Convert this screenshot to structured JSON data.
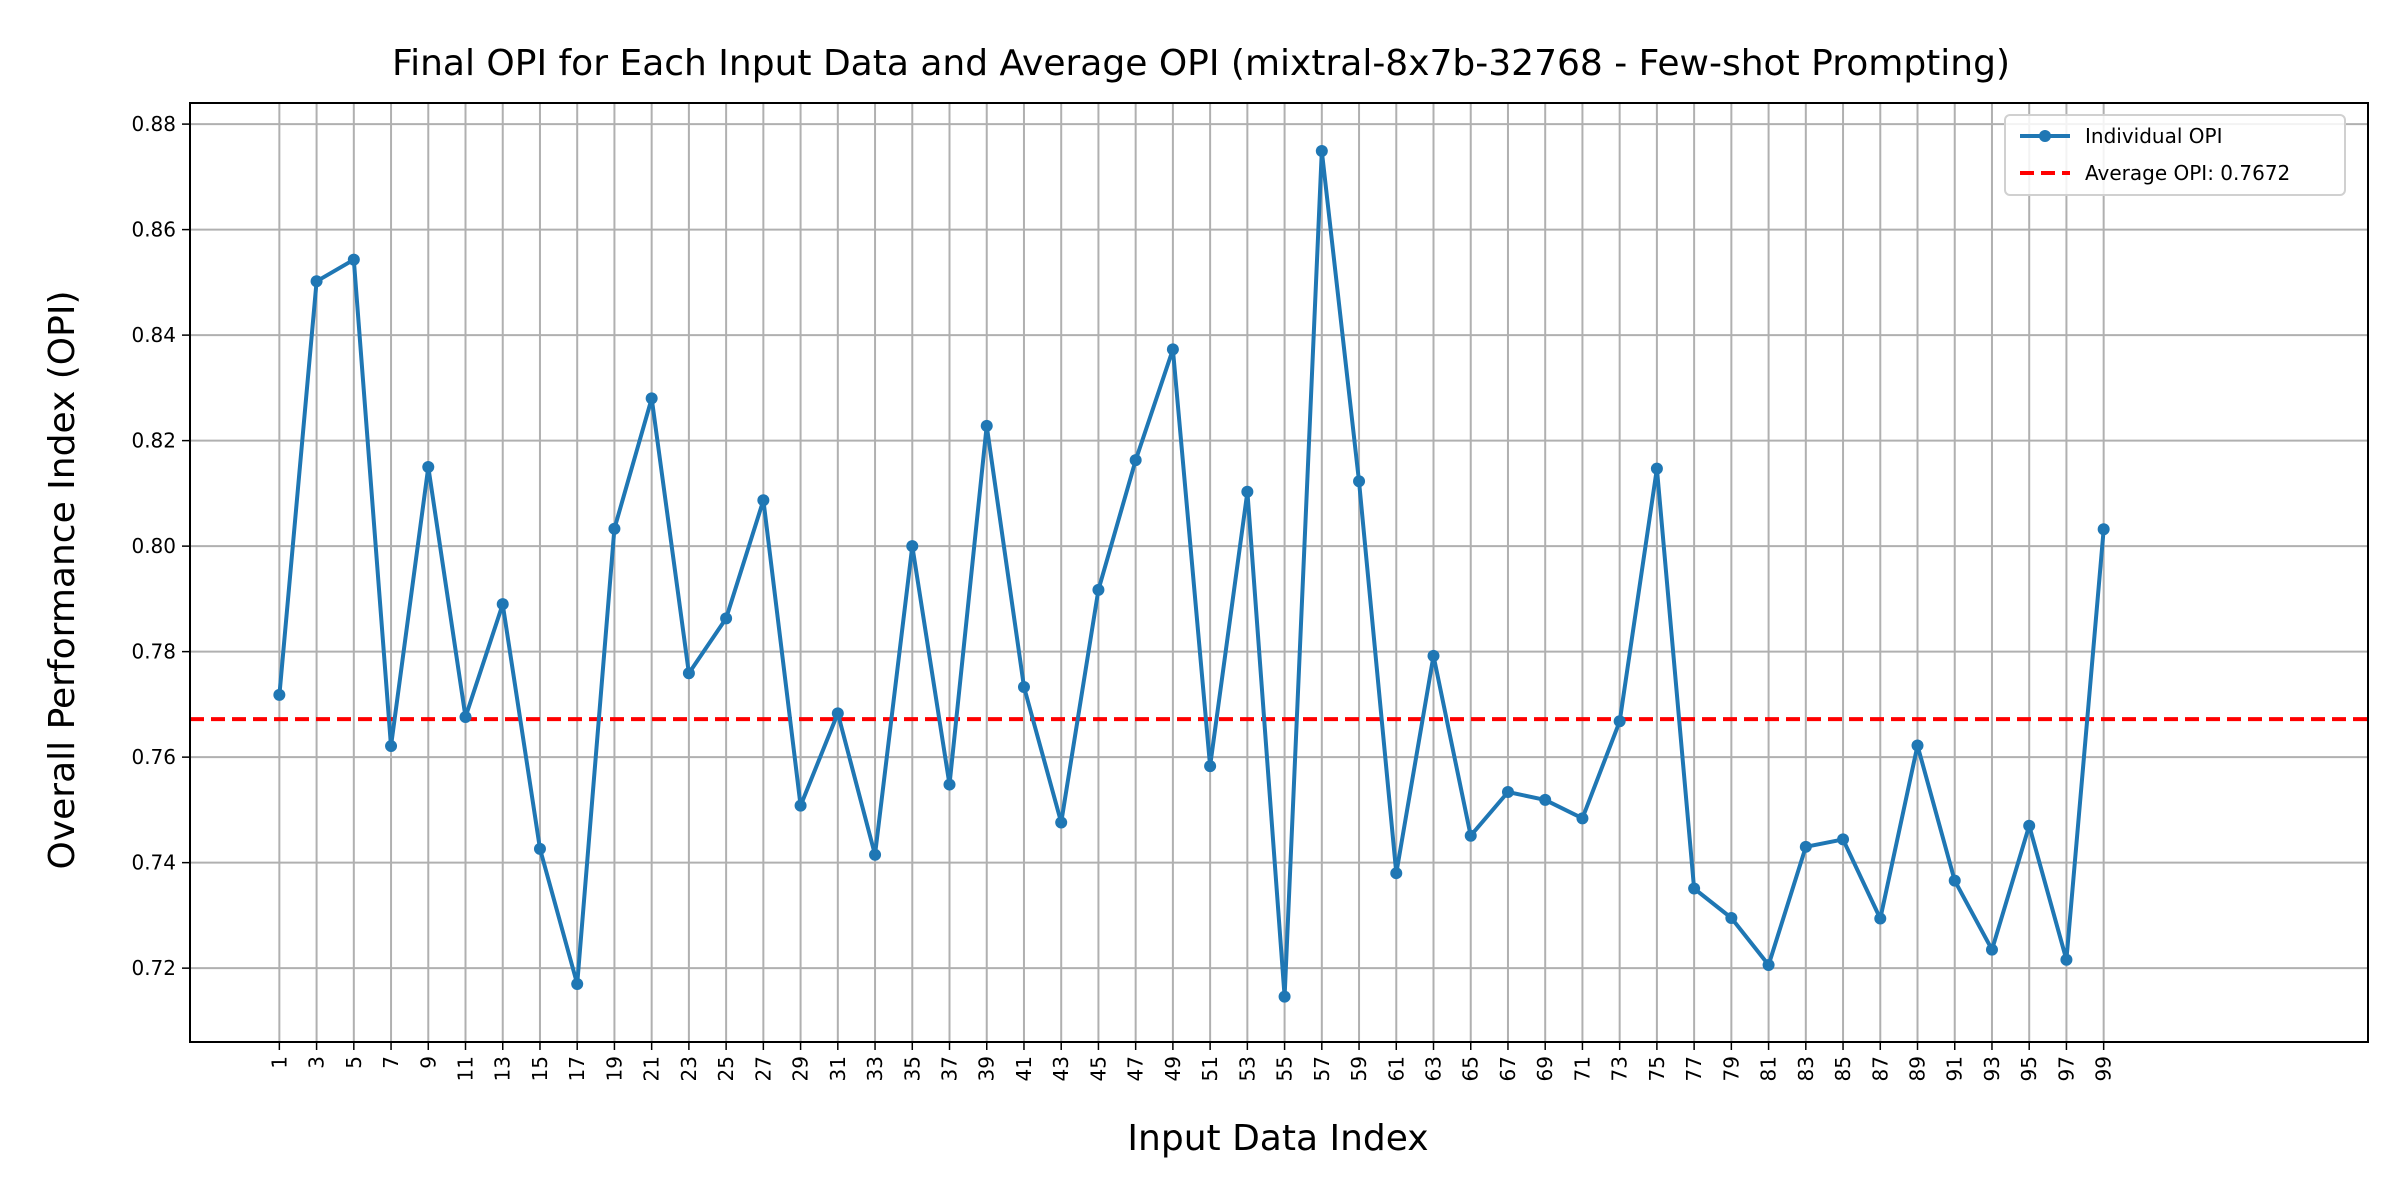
{
  "chart_data": {
    "type": "line",
    "title": "Final OPI for Each Input Data and Average OPI (mixtral-8x7b-32768 - Few-shot Prompting)",
    "xlabel": "Input Data Index",
    "ylabel": "Overall Performance Index (OPI)",
    "ylim": [
      0.706,
      0.884
    ],
    "xlim": [
      -3.8,
      113.2
    ],
    "grid": true,
    "legend_placement": "top-right",
    "x_ticks": [
      1,
      3,
      5,
      7,
      9,
      11,
      13,
      15,
      17,
      19,
      21,
      23,
      25,
      27,
      29,
      31,
      33,
      35,
      37,
      39,
      41,
      43,
      45,
      47,
      49,
      51,
      53,
      55,
      57,
      59,
      61,
      63,
      65,
      67,
      69,
      71,
      73,
      75,
      77,
      79,
      81,
      83,
      85,
      87,
      89,
      91,
      93,
      95,
      97,
      99
    ],
    "y_ticks": [
      0.72,
      0.74,
      0.76,
      0.78,
      0.8,
      0.82,
      0.84,
      0.86,
      0.88
    ],
    "y_tick_labels": [
      "0.72",
      "0.74",
      "0.76",
      "0.78",
      "0.80",
      "0.82",
      "0.84",
      "0.86",
      "0.88"
    ],
    "series": [
      {
        "name": "Individual OPI",
        "color": "#1f77b4",
        "style": "solid-with-markers",
        "x": [
          1,
          3,
          5,
          7,
          9,
          11,
          13,
          15,
          17,
          19,
          21,
          23,
          25,
          27,
          29,
          31,
          33,
          35,
          37,
          39,
          41,
          43,
          45,
          47,
          49,
          51,
          53,
          55,
          57,
          59,
          61,
          63,
          65,
          67,
          69,
          71,
          73,
          75,
          77,
          79,
          81,
          83,
          85,
          87,
          89,
          91,
          93,
          95,
          97,
          99
        ],
        "values": [
          0.7718,
          0.8502,
          0.8543,
          0.7621,
          0.815,
          0.7676,
          0.789,
          0.7426,
          0.717,
          0.8033,
          0.828,
          0.7759,
          0.7863,
          0.8087,
          0.7508,
          0.7683,
          0.7415,
          0.8,
          0.7548,
          0.8228,
          0.7733,
          0.7476,
          0.7917,
          0.8163,
          0.8373,
          0.7583,
          0.8103,
          0.7146,
          0.8749,
          0.8123,
          0.738,
          0.7792,
          0.7451,
          0.7534,
          0.7519,
          0.7484,
          0.7668,
          0.8147,
          0.7351,
          0.7295,
          0.7206,
          0.743,
          0.7444,
          0.7294,
          0.7622,
          0.7366,
          0.7235,
          0.747,
          0.7216,
          0.8032
        ]
      },
      {
        "name": "Average OPI: 0.7672",
        "color": "#ff0000",
        "style": "dashed",
        "value": 0.7672
      }
    ]
  }
}
